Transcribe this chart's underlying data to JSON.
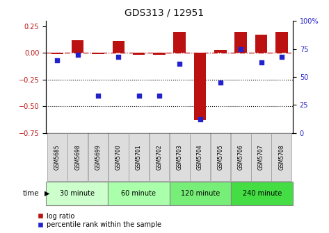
{
  "title": "GDS313 / 12951",
  "samples": [
    "GSM5685",
    "GSM5698",
    "GSM5699",
    "GSM5700",
    "GSM5701",
    "GSM5702",
    "GSM5703",
    "GSM5704",
    "GSM5705",
    "GSM5706",
    "GSM5707",
    "GSM5708"
  ],
  "log_ratio": [
    -0.01,
    0.12,
    -0.01,
    0.11,
    -0.02,
    -0.02,
    0.2,
    -0.63,
    0.03,
    0.2,
    0.17,
    0.2
  ],
  "percentile": [
    65,
    70,
    33,
    68,
    33,
    33,
    62,
    12,
    45,
    75,
    63,
    68
  ],
  "ylim_left": [
    -0.75,
    0.3
  ],
  "ylim_right": [
    0,
    100
  ],
  "yticks_left": [
    0.25,
    0.0,
    -0.25,
    -0.5,
    -0.75
  ],
  "yticks_right": [
    100,
    75,
    50,
    25,
    0
  ],
  "hlines": [
    -0.25,
    -0.5
  ],
  "bar_color": "#bb1111",
  "dot_color": "#2222cc",
  "zero_line_color": "#bb1111",
  "groups": [
    {
      "label": "30 minute",
      "start": 0,
      "end": 3,
      "color": "#ccffcc"
    },
    {
      "label": "60 minute",
      "start": 3,
      "end": 6,
      "color": "#aaffaa"
    },
    {
      "label": "120 minute",
      "start": 6,
      "end": 9,
      "color": "#77ee77"
    },
    {
      "label": "240 minute",
      "start": 9,
      "end": 12,
      "color": "#44dd44"
    }
  ],
  "time_label": "time",
  "legend_log": "log ratio",
  "legend_pct": "percentile rank within the sample",
  "bar_width": 0.6,
  "background_color": "#ffffff",
  "title_color": "#111111",
  "title_fontsize": 10,
  "tick_fontsize": 7,
  "sample_fontsize": 5.5,
  "group_fontsize": 7,
  "legend_fontsize": 7
}
